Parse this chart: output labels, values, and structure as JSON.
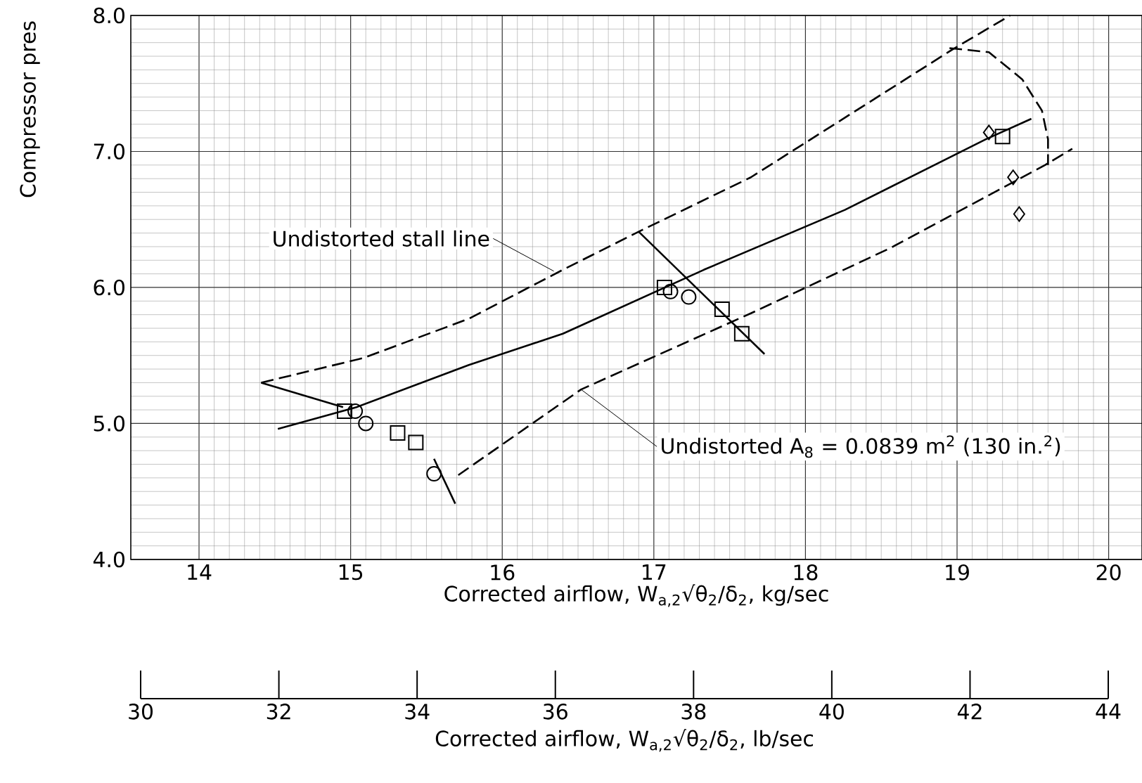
{
  "chart_data": {
    "type": "line",
    "ylabel": "Compressor pres",
    "xlabel": "Corrected airflow, W$_{a,2}$√θ$_{2}$/δ$_{2}$, kg/sec",
    "x2label": "Corrected airflow, W$_{a,2}$√θ$_{2}$/δ$_{2}$, lb/sec",
    "xlim": [
      13.55,
      20.22
    ],
    "xticks": [
      14,
      15,
      16,
      17,
      18,
      19,
      20
    ],
    "ylim": [
      4.0,
      8.0
    ],
    "yticks": [
      {
        "value": 4,
        "label": "4.0"
      },
      {
        "value": 5,
        "label": "5.0"
      },
      {
        "value": 6,
        "label": "6.0"
      },
      {
        "value": 7,
        "label": "7.0"
      },
      {
        "value": 8,
        "label": "8.0"
      }
    ],
    "x2lim": [
      30,
      44
    ],
    "x2ticks": [
      30,
      32,
      34,
      36,
      38,
      40,
      42,
      44
    ],
    "grid": true,
    "annotations": [
      {
        "text": "Undistorted stall line",
        "x": 16.34,
        "y": 6.12
      },
      {
        "text": "Undistorted A$_{8}$ = 0.0839 m$^{2}$ (130 in.$^{2}$)",
        "x": 16.52,
        "y": 5.25
      }
    ],
    "series": [
      {
        "type": "line",
        "color": "#000000",
        "line_style": "dashed",
        "x": [
          14.41,
          15.08,
          15.78,
          16.4,
          16.9,
          17.64,
          18.97,
          19.35
        ],
        "values": [
          5.3,
          5.48,
          5.77,
          6.13,
          6.41,
          6.81,
          7.75,
          8.0
        ]
      },
      {
        "type": "line",
        "color": "#000000",
        "line_style": "solid",
        "x": [
          14.41,
          14.95
        ],
        "values": [
          5.3,
          5.12
        ]
      },
      {
        "type": "line",
        "color": "#000000",
        "line_style": "solid",
        "x": [
          14.52,
          15.04,
          15.78,
          16.4,
          17.33,
          18.26,
          19.19,
          19.49
        ],
        "values": [
          4.96,
          5.12,
          5.43,
          5.66,
          6.13,
          6.57,
          7.09,
          7.24
        ]
      },
      {
        "type": "line",
        "color": "#000000",
        "line_style": "dashed",
        "x": [
          15.71,
          16.52,
          17.02,
          17.64,
          18.56,
          19.58,
          19.76
        ],
        "values": [
          4.62,
          5.25,
          5.5,
          5.81,
          6.29,
          6.9,
          7.02
        ]
      },
      {
        "type": "line",
        "color": "#000000",
        "line_style": "dashed",
        "x": [
          18.95,
          19.21,
          19.43,
          19.56,
          19.6,
          19.6
        ],
        "values": [
          7.76,
          7.73,
          7.53,
          7.3,
          7.09,
          6.9
        ]
      },
      {
        "type": "line",
        "color": "#000000",
        "line_style": "solid",
        "x": [
          16.9,
          17.73
        ],
        "values": [
          6.41,
          5.51
        ]
      },
      {
        "type": "line",
        "color": "#000000",
        "line_style": "solid",
        "x": [
          15.55,
          15.69
        ],
        "values": [
          4.74,
          4.41
        ]
      },
      {
        "type": "scatter",
        "color": "#000000",
        "marker": "square",
        "x": [
          14.96,
          15.31,
          15.43,
          17.07,
          17.45,
          17.58,
          19.3
        ],
        "values": [
          5.09,
          4.93,
          4.86,
          6.0,
          5.84,
          5.66,
          7.11
        ]
      },
      {
        "type": "scatter",
        "color": "#000000",
        "marker": "circle",
        "x": [
          15.03,
          15.1,
          15.55,
          17.11,
          17.23
        ],
        "values": [
          5.09,
          5.0,
          4.63,
          5.97,
          5.93
        ]
      },
      {
        "type": "scatter",
        "color": "#000000",
        "marker": "diamond",
        "x": [
          19.21,
          19.37,
          19.41
        ],
        "values": [
          7.14,
          6.81,
          6.54
        ]
      }
    ]
  }
}
